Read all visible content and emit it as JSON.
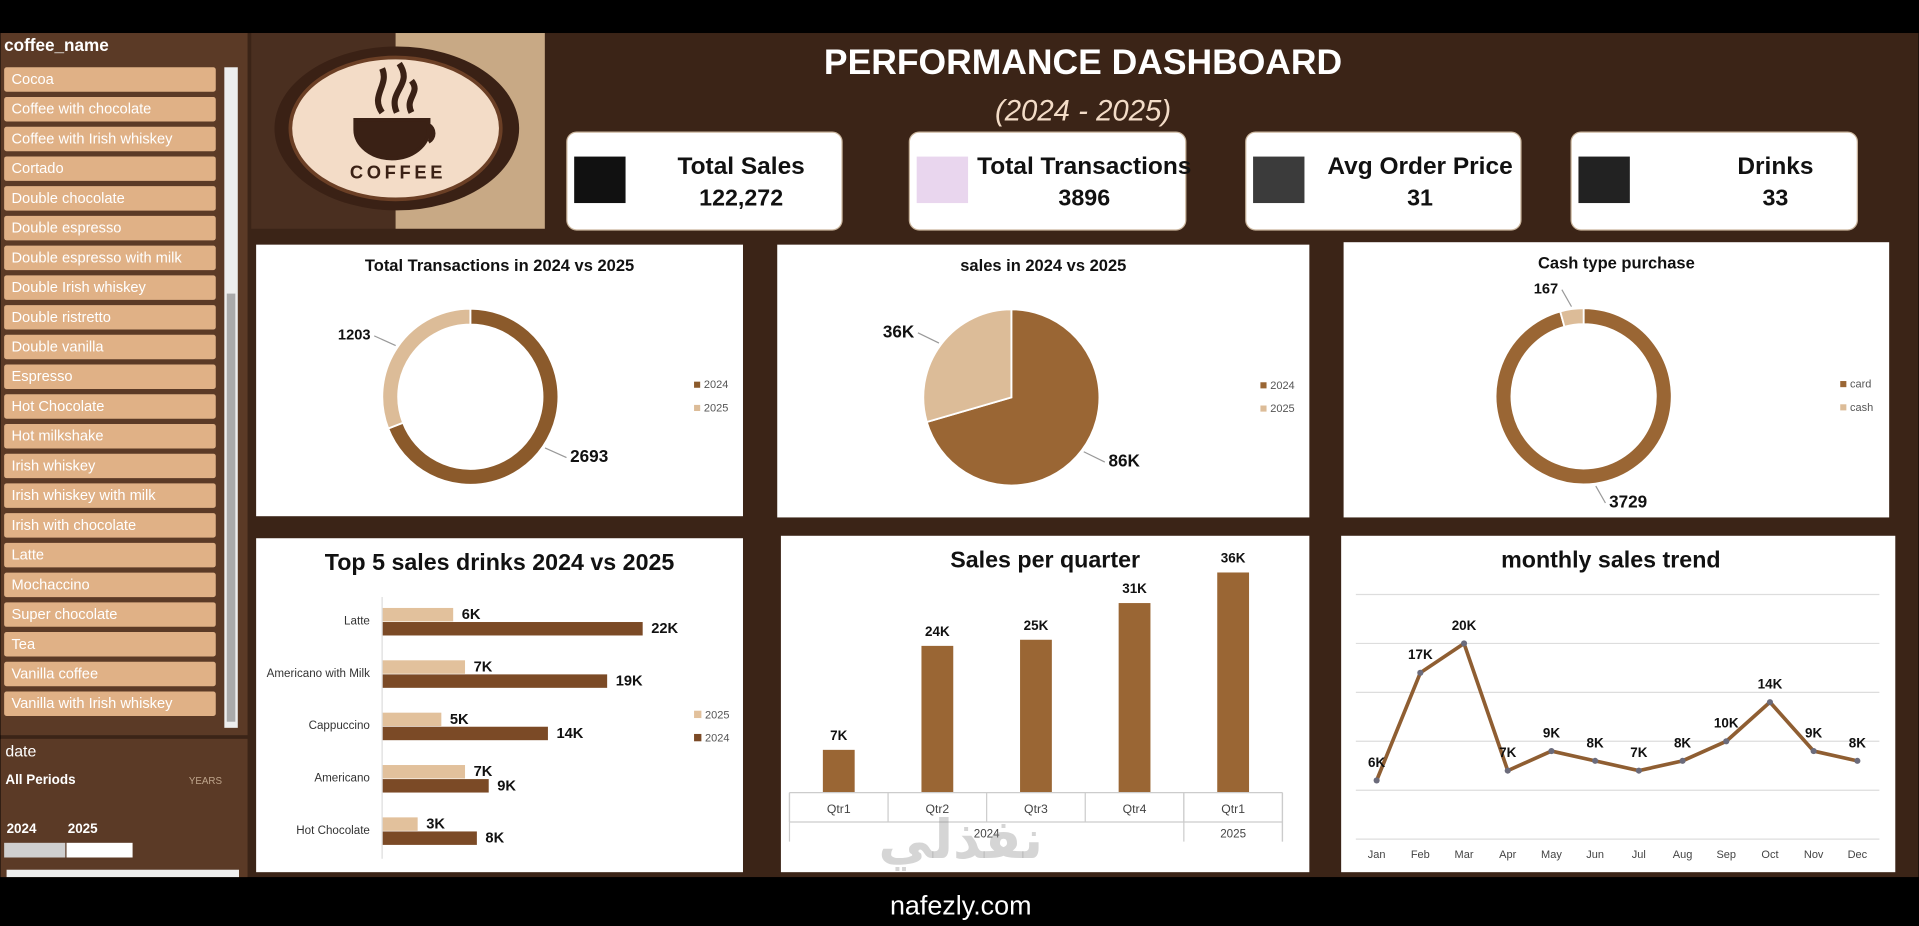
{
  "slicer": {
    "title": "coffee_name",
    "items": [
      "Cocoa",
      "Coffee with chocolate",
      "Coffee with Irish whiskey",
      "Cortado",
      "Double chocolate",
      "Double espresso",
      "Double espresso with milk",
      "Double Irish whiskey",
      "Double ristretto",
      "Double vanilla",
      "Espresso",
      "Hot Chocolate",
      "Hot milkshake",
      "Irish whiskey",
      "Irish whiskey with milk",
      "Irish with chocolate",
      "Latte",
      "Mochaccino",
      "Super chocolate",
      "Tea",
      "Vanilla coffee",
      "Vanilla with Irish whiskey"
    ]
  },
  "date_slicer": {
    "title": "date",
    "period": "All Periods",
    "unit": "YEARS",
    "years": [
      "2024",
      "2025"
    ]
  },
  "header": {
    "title": "PERFORMANCE DASHBOARD",
    "subtitle": "(2024 - 2025)",
    "logo": "COFFEE"
  },
  "kpis": [
    {
      "label": "Total Sales",
      "value": "122,272"
    },
    {
      "label": "Total Transactions",
      "value": "3896"
    },
    {
      "label": "Avg Order Price",
      "value": "31"
    },
    {
      "label": "Drinks",
      "value": "33"
    }
  ],
  "chart_data": [
    {
      "type": "donut",
      "title": "Total Transactions in 2024 vs 2025",
      "categories": [
        "2024",
        "2025"
      ],
      "values": [
        2693,
        1203
      ],
      "colors": [
        "#8b5a2b",
        "#dcbc98"
      ]
    },
    {
      "type": "pie",
      "title": "sales in 2024 vs 2025",
      "categories": [
        "2024",
        "2025"
      ],
      "values": [
        86000,
        36000
      ],
      "value_labels": [
        "86K",
        "36K"
      ],
      "colors": [
        "#9a6634",
        "#dcbc98"
      ]
    },
    {
      "type": "donut",
      "title": "Cash type purchase",
      "categories": [
        "card",
        "cash"
      ],
      "values": [
        3729,
        167
      ],
      "colors": [
        "#9a6634",
        "#dcbc98"
      ]
    },
    {
      "type": "hbar",
      "title": "Top 5 sales drinks 2024 vs 2025",
      "categories": [
        "Latte",
        "Americano with Milk",
        "Cappuccino",
        "Americano",
        "Hot Chocolate"
      ],
      "series": [
        {
          "name": "2025",
          "color": "#e2c19c",
          "values": [
            6000,
            7000,
            5000,
            7000,
            3000
          ],
          "value_labels": [
            "6K",
            "7K",
            "5K",
            "7K",
            "3K"
          ]
        },
        {
          "name": "2024",
          "color": "#7b4a26",
          "values": [
            22000,
            19000,
            14000,
            9000,
            8000
          ],
          "value_labels": [
            "22K",
            "19K",
            "14K",
            "9K",
            "8K"
          ]
        }
      ]
    },
    {
      "type": "bar",
      "title": "Sales per quarter",
      "categories": [
        "Qtr1",
        "Qtr2",
        "Qtr3",
        "Qtr4",
        "Qtr1"
      ],
      "category_groups": [
        "2024",
        "2024",
        "2024",
        "2024",
        "2025"
      ],
      "values": [
        7000,
        24000,
        25000,
        31000,
        36000
      ],
      "value_labels": [
        "7K",
        "24K",
        "25K",
        "31K",
        "36K"
      ],
      "color": "#9a6634"
    },
    {
      "type": "line",
      "title": "monthly sales trend",
      "categories": [
        "Jan",
        "Feb",
        "Mar",
        "Apr",
        "May",
        "Jun",
        "Jul",
        "Aug",
        "Sep",
        "Oct",
        "Nov",
        "Dec"
      ],
      "values": [
        6000,
        17000,
        20000,
        7000,
        9000,
        8000,
        7000,
        8000,
        10000,
        14000,
        9000,
        8000
      ],
      "value_labels": [
        "6K",
        "17K",
        "20K",
        "7K",
        "9K",
        "8K",
        "7K",
        "8K",
        "10K",
        "14K",
        "9K",
        "8K"
      ],
      "color": "#8f5e32",
      "ylim": [
        0,
        25000
      ],
      "yticks": [
        0,
        5000,
        10000,
        15000,
        20000,
        25000
      ],
      "grid": true
    }
  ],
  "watermark": "nafezly.com",
  "watermark_ar": "نفذلي"
}
